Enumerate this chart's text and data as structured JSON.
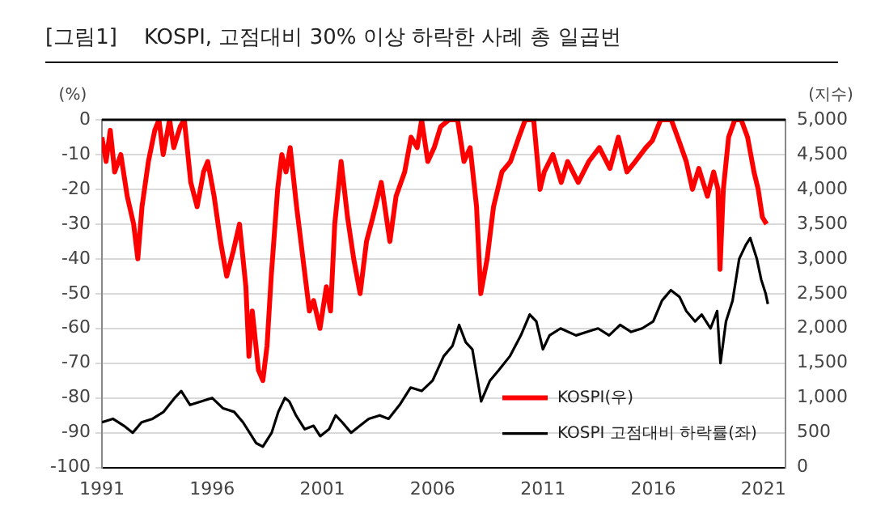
{
  "chart_data": {
    "type": "line",
    "title": "[그림1]    KOSPI, 고점대비 30% 이상 하락한 사례 총 일곱번",
    "ylabel": "(%)",
    "y2label": "(지수)",
    "xlim": [
      1991,
      2022
    ],
    "xticks": [
      1991,
      1996,
      2001,
      2006,
      2011,
      2016,
      2021
    ],
    "ylim": [
      -100,
      0
    ],
    "yticks": [
      -100,
      -90,
      -80,
      -70,
      -60,
      -50,
      -40,
      -30,
      -20,
      -10,
      0
    ],
    "y2lim": [
      0,
      5000
    ],
    "y2ticks": [
      0,
      {
        "value": 500,
        "label": "500"
      },
      {
        "value": 1000,
        "label": "1,000"
      },
      {
        "value": 1500,
        "label": "1,500"
      },
      {
        "value": 2000,
        "label": "2,000"
      },
      {
        "value": 2500,
        "label": "2,500"
      },
      {
        "value": 3000,
        "label": "3,000"
      },
      {
        "value": 3500,
        "label": "3,500"
      },
      {
        "value": 4000,
        "label": "4,000"
      },
      {
        "value": 4500,
        "label": "4,500"
      },
      {
        "value": 5000,
        "label": "5,000"
      }
    ],
    "grid": "y",
    "legend": "bottom right",
    "marker": "none",
    "line_style": "solid",
    "series": [
      {
        "name": "KOSPI(우)",
        "color": "#ff0000",
        "axis": "y2",
        "x": [
          1991.0,
          1991.19,
          1991.38,
          1991.58,
          1991.86,
          1992.15,
          1992.44,
          1992.63,
          1992.82,
          1993.11,
          1993.4,
          1993.59,
          1993.78,
          1994.07,
          1994.26,
          1994.55,
          1994.74,
          1995.03,
          1995.32,
          1995.61,
          1995.8,
          1996.09,
          1996.38,
          1996.66,
          1996.95,
          1997.24,
          1997.53,
          1997.67,
          1997.82,
          1998.1,
          1998.3,
          1998.49,
          1998.68,
          1998.97,
          1999.16,
          1999.35,
          1999.54,
          1999.83,
          2000.12,
          2000.41,
          2000.6,
          2000.89,
          2001.18,
          2001.37,
          2001.56,
          2001.85,
          2002.14,
          2002.42,
          2002.71,
          2003.0,
          2003.29,
          2003.67,
          2004.06,
          2004.34,
          2004.73,
          2005.02,
          2005.3,
          2005.5,
          2005.78,
          2006.07,
          2006.36,
          2006.74,
          2007.13,
          2007.42,
          2007.7,
          2007.99,
          2008.18,
          2008.47,
          2008.76,
          2009.14,
          2009.53,
          2009.91,
          2010.2,
          2010.58,
          2010.87,
          2011.06,
          2011.45,
          2011.83,
          2012.12,
          2012.6,
          2013.08,
          2013.56,
          2014.04,
          2014.42,
          2014.81,
          2015.19,
          2015.67,
          2015.96,
          2016.34,
          2016.82,
          2017.11,
          2017.5,
          2017.78,
          2018.07,
          2018.46,
          2018.74,
          2018.94,
          2019.03,
          2019.18,
          2019.42,
          2019.7,
          2019.99,
          2020.28,
          2020.57,
          2020.76,
          2020.95,
          2021.14
        ],
        "values": [
          4750,
          4400,
          4850,
          4250,
          4500,
          3900,
          3500,
          3000,
          3750,
          4400,
          4850,
          5000,
          4500,
          5000,
          4600,
          4900,
          5000,
          4100,
          3750,
          4250,
          4400,
          3900,
          3250,
          2750,
          3100,
          3500,
          2600,
          1600,
          2250,
          1400,
          1250,
          1750,
          2750,
          4000,
          4500,
          4250,
          4600,
          3750,
          3000,
          2250,
          2400,
          2000,
          2600,
          2250,
          3500,
          4400,
          3600,
          3000,
          2500,
          3250,
          3600,
          4100,
          3250,
          3900,
          4250,
          4750,
          4600,
          5000,
          4400,
          4600,
          4900,
          5000,
          5000,
          4400,
          4600,
          3750,
          2500,
          3000,
          3750,
          4250,
          4400,
          4750,
          5000,
          5000,
          4000,
          4250,
          4500,
          4100,
          4400,
          4100,
          4400,
          4600,
          4300,
          4750,
          4250,
          4400,
          4600,
          4700,
          5000,
          5000,
          4750,
          4400,
          4000,
          4300,
          3900,
          4250,
          4000,
          2850,
          4000,
          4750,
          5000,
          5000,
          4750,
          4250,
          4000,
          3600,
          3500
        ]
      },
      {
        "name": "KOSPI 고점대비 하락률(좌)",
        "color": "#000000",
        "x": [
          1991.0,
          1991.5,
          1992.0,
          1992.4,
          1992.8,
          1993.3,
          1993.8,
          1994.3,
          1994.6,
          1995.0,
          1995.5,
          1996.0,
          1996.5,
          1997.0,
          1997.4,
          1997.7,
          1998.0,
          1998.3,
          1998.7,
          1999.0,
          1999.3,
          1999.5,
          1999.8,
          2000.2,
          2000.6,
          2000.9,
          2001.3,
          2001.6,
          2001.9,
          2002.3,
          2002.7,
          2003.1,
          2003.6,
          2004.0,
          2004.5,
          2005.0,
          2005.5,
          2006.0,
          2006.5,
          2006.9,
          2007.2,
          2007.5,
          2007.8,
          2008.2,
          2008.6,
          2009.0,
          2009.5,
          2010.0,
          2010.4,
          2010.7,
          2011.0,
          2011.3,
          2011.8,
          2012.5,
          2013.0,
          2013.5,
          2014.0,
          2014.5,
          2015.0,
          2015.5,
          2016.0,
          2016.4,
          2016.8,
          2017.2,
          2017.5,
          2017.9,
          2018.2,
          2018.6,
          2018.9,
          2019.05,
          2019.3,
          2019.6,
          2019.9,
          2020.2,
          2020.4,
          2020.7,
          2020.9,
          2021.1,
          2021.2
        ],
        "values": [
          -87,
          -86,
          -88,
          -90,
          -87,
          -86,
          -84,
          -80,
          -78,
          -82,
          -81,
          -80,
          -83,
          -84,
          -87,
          -90,
          -93,
          -94,
          -90,
          -84,
          -80,
          -81,
          -85,
          -89,
          -88,
          -91,
          -89,
          -85,
          -87,
          -90,
          -88,
          -86,
          -85,
          -86,
          -82,
          -77,
          -78,
          -75,
          -68,
          -65,
          -59,
          -64,
          -66,
          -81,
          -75,
          -72,
          -68,
          -62,
          -56,
          -58,
          -66,
          -62,
          -60,
          -62,
          -61,
          -60,
          -62,
          -59,
          -61,
          -60,
          -58,
          -52,
          -49,
          -51,
          -55,
          -58,
          -56,
          -60,
          -55,
          -70,
          -58,
          -52,
          -40,
          -36,
          -34,
          -40,
          -46,
          -50,
          -53
        ]
      }
    ]
  }
}
